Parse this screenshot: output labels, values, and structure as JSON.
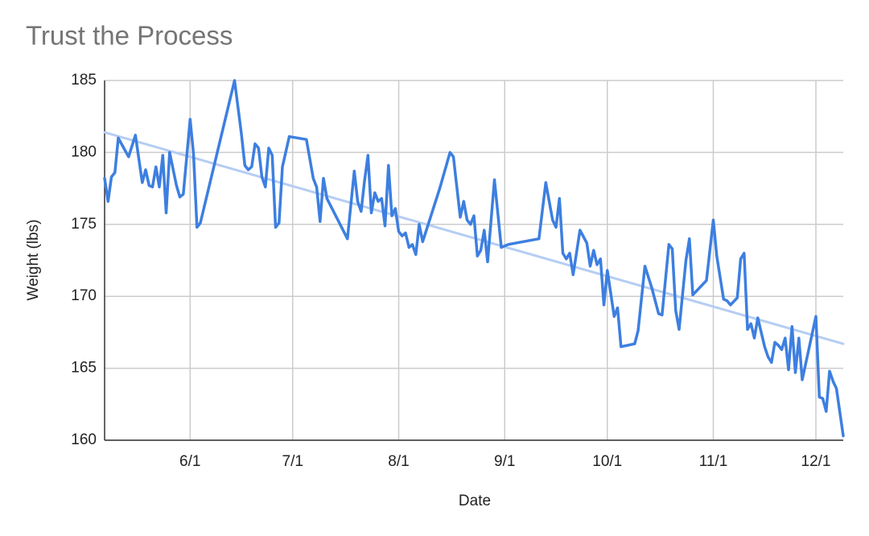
{
  "chart_data": {
    "type": "line",
    "title": "Trust the Process",
    "x_label": "Date",
    "y_label": "Weight (lbs)",
    "x": [
      "5/7",
      "5/8",
      "5/9",
      "5/10",
      "5/11",
      "5/14",
      "5/16",
      "5/18",
      "5/19",
      "5/20",
      "5/21",
      "5/22",
      "5/23",
      "5/24",
      "5/25",
      "5/26",
      "5/28",
      "5/29",
      "5/30",
      "6/1",
      "6/2",
      "6/3",
      "6/4",
      "6/14",
      "6/16",
      "6/17",
      "6/18",
      "6/19",
      "6/20",
      "6/21",
      "6/22",
      "6/23",
      "6/24",
      "6/25",
      "6/26",
      "6/27",
      "6/28",
      "6/30",
      "7/5",
      "7/7",
      "7/8",
      "7/9",
      "7/10",
      "7/11",
      "7/17",
      "7/19",
      "7/20",
      "7/21",
      "7/22",
      "7/23",
      "7/24",
      "7/25",
      "7/26",
      "7/27",
      "7/28",
      "7/29",
      "7/30",
      "7/31",
      "8/1",
      "8/2",
      "8/3",
      "8/4",
      "8/5",
      "8/6",
      "8/7",
      "8/8",
      "8/13",
      "8/16",
      "8/17",
      "8/19",
      "8/20",
      "8/21",
      "8/22",
      "8/23",
      "8/24",
      "8/25",
      "8/26",
      "8/27",
      "8/29",
      "8/31",
      "9/2",
      "9/11",
      "9/13",
      "9/15",
      "9/16",
      "9/17",
      "9/18",
      "9/19",
      "9/20",
      "9/21",
      "9/23",
      "9/25",
      "9/26",
      "9/27",
      "9/28",
      "9/29",
      "9/30",
      "10/1",
      "10/3",
      "10/4",
      "10/5",
      "10/9",
      "10/10",
      "10/12",
      "10/14",
      "10/16",
      "10/17",
      "10/19",
      "10/20",
      "10/21",
      "10/22",
      "10/24",
      "10/25",
      "10/26",
      "10/30",
      "11/1",
      "11/2",
      "11/4",
      "11/5",
      "11/6",
      "11/8",
      "11/9",
      "11/10",
      "11/11",
      "11/12",
      "11/13",
      "11/14",
      "11/16",
      "11/17",
      "11/18",
      "11/19",
      "11/20",
      "11/21",
      "11/22",
      "11/23",
      "11/24",
      "11/25",
      "11/26",
      "11/27",
      "12/1",
      "12/2",
      "12/3",
      "12/4",
      "12/5",
      "12/6",
      "12/7",
      "12/9"
    ],
    "series": [
      {
        "color": "#3d7fe0",
        "values": [
          178.2,
          176.6,
          178.3,
          178.6,
          181.0,
          179.7,
          181.2,
          177.9,
          178.8,
          177.7,
          177.6,
          179.0,
          177.6,
          179.8,
          175.8,
          180.0,
          177.7,
          176.9,
          177.1,
          182.3,
          179.9,
          174.8,
          175.1,
          185.0,
          181.3,
          179.1,
          178.8,
          179.0,
          180.6,
          180.3,
          178.3,
          177.6,
          180.3,
          179.8,
          174.8,
          175.1,
          179.0,
          181.1,
          180.9,
          178.2,
          177.6,
          175.2,
          178.2,
          176.8,
          174.0,
          178.7,
          176.6,
          175.9,
          178.0,
          179.8,
          175.8,
          177.2,
          176.6,
          176.8,
          174.9,
          179.1,
          175.6,
          176.1,
          174.5,
          174.2,
          174.4,
          173.4,
          173.6,
          172.9,
          175.0,
          173.8,
          177.5,
          180.0,
          179.7,
          175.5,
          176.6,
          175.3,
          175.0,
          175.6,
          172.8,
          173.2,
          174.6,
          172.4,
          178.1,
          173.4,
          173.6,
          174.0,
          177.9,
          175.3,
          174.8,
          176.8,
          173.0,
          172.6,
          173.0,
          171.5,
          174.6,
          173.7,
          172.1,
          173.2,
          172.2,
          172.6,
          169.4,
          171.8,
          168.6,
          169.2,
          166.5,
          166.7,
          167.6,
          172.1,
          170.6,
          168.8,
          168.7,
          173.6,
          173.3,
          169.0,
          167.7,
          172.5,
          174.0,
          170.1,
          171.1,
          175.3,
          172.8,
          169.8,
          169.7,
          169.4,
          169.9,
          172.6,
          173.0,
          167.7,
          168.1,
          167.1,
          168.5,
          166.5,
          165.8,
          165.4,
          166.8,
          166.6,
          166.3,
          167.1,
          164.9,
          167.9,
          164.7,
          167.1,
          164.2,
          168.6,
          163.0,
          162.9,
          162.0,
          164.8,
          164.1,
          163.6,
          160.3
        ]
      },
      {
        "color": "#b5cdf3",
        "x": [
          "5/7",
          "12/9"
        ],
        "values": [
          181.4,
          166.7
        ]
      }
    ],
    "xlim": [
      "5/7",
      "12/9"
    ],
    "xticks": [
      "6/1",
      "7/1",
      "8/1",
      "9/1",
      "10/1",
      "11/1",
      "12/1"
    ],
    "ylim": [
      160,
      185
    ],
    "yticks": [
      160,
      165,
      170,
      175,
      180,
      185
    ],
    "grid": true
  }
}
